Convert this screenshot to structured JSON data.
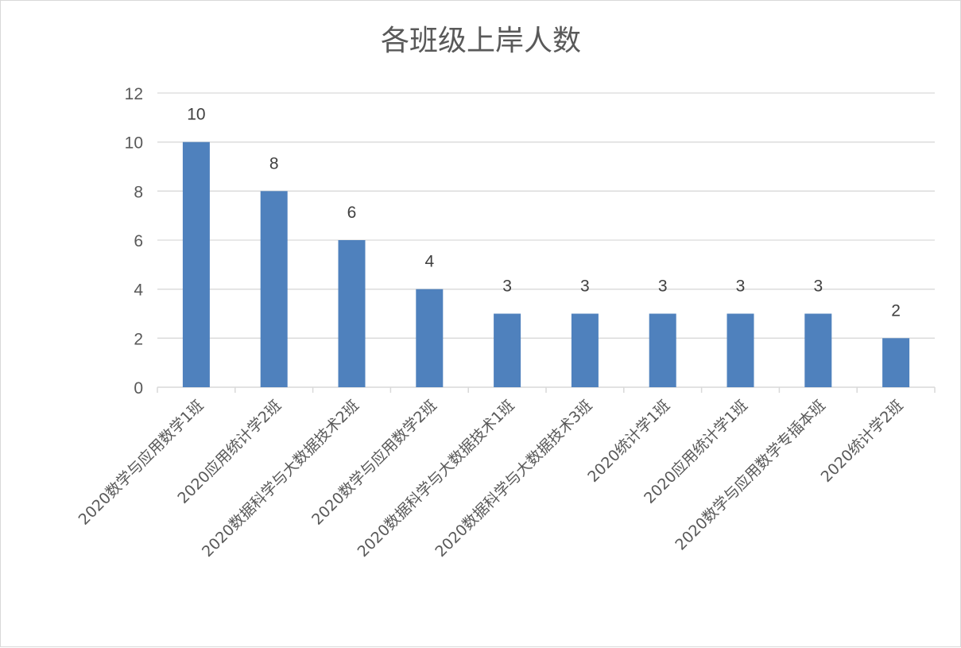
{
  "chart_data": {
    "type": "bar",
    "title": "各班级上岸人数",
    "xlabel": "",
    "ylabel": "",
    "ylim": [
      0,
      12
    ],
    "yticks": [
      0,
      2,
      4,
      6,
      8,
      10,
      12
    ],
    "grid": true,
    "legend": "none",
    "bar_color": "#4f81bd",
    "categories": [
      "2020数学与应用数学1班",
      "2020应用统计学2班",
      "2020数据科学与大数据技术2班",
      "2020数学与应用数学2班",
      "2020数据科学与大数据技术1班",
      "2020数据科学与大数据技术3班",
      "2020统计学1班",
      "2020应用统计学1班",
      "2020数学与应用数学专插本班",
      "2020统计学2班"
    ],
    "values": [
      10,
      8,
      6,
      4,
      3,
      3,
      3,
      3,
      3,
      2
    ]
  }
}
